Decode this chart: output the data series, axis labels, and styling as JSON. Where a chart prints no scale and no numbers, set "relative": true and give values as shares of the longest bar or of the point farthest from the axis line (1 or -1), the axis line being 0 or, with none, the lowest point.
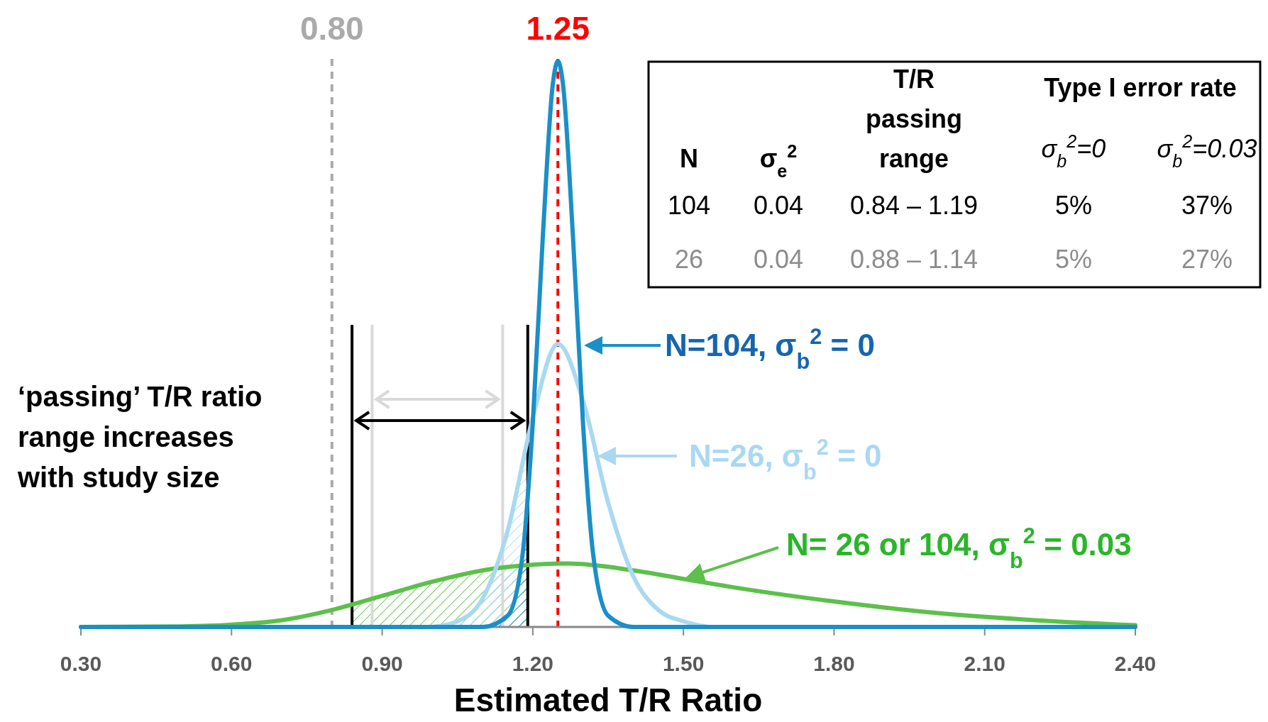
{
  "chart_data": {
    "type": "line",
    "relative": true,
    "xlabel": "Estimated T/R Ratio",
    "xlim": [
      0.3,
      2.4
    ],
    "xticks": [
      {
        "value": 0.3,
        "label": "0.30"
      },
      {
        "value": 0.6,
        "label": "0.60"
      },
      {
        "value": 0.9,
        "label": "0.90"
      },
      {
        "value": 1.2,
        "label": "1.20"
      },
      {
        "value": 1.5,
        "label": "1.50"
      },
      {
        "value": 1.8,
        "label": "1.80"
      },
      {
        "value": 2.1,
        "label": "2.10"
      },
      {
        "value": 2.4,
        "label": "2.40"
      }
    ],
    "grid": false,
    "legend": "right",
    "marker": "none",
    "line_style": "solid",
    "series": [
      {
        "name": "N= 26 or 104, σ$_{b}$$^{2}$ = 0.03",
        "color": "#5cc04a",
        "x": [
          0.3,
          0.5,
          0.6,
          0.7,
          0.8,
          0.9,
          1.0,
          1.1,
          1.2,
          1.27,
          1.4,
          1.5,
          1.6,
          1.8,
          2.0,
          2.2,
          2.4
        ],
        "values": [
          0,
          0.001,
          0.004,
          0.012,
          0.03,
          0.055,
          0.08,
          0.1,
          0.11,
          0.112,
          0.1,
          0.085,
          0.07,
          0.045,
          0.025,
          0.012,
          0.003
        ]
      },
      {
        "name": "N=26, σ$_{b}$$^{2}$ = 0",
        "color": "#a9d9f2",
        "x": [
          1.0,
          1.05,
          1.1,
          1.15,
          1.2,
          1.25,
          1.3,
          1.35,
          1.4,
          1.45,
          1.5,
          1.55
        ],
        "values": [
          0,
          0.01,
          0.05,
          0.17,
          0.37,
          0.5,
          0.4,
          0.22,
          0.09,
          0.03,
          0.01,
          0
        ]
      },
      {
        "name": "N=104, σ$_{b}$$^{2}$ = 0",
        "color": "#1a8fc8",
        "x": [
          0.3,
          1.1,
          1.15,
          1.18,
          1.2,
          1.22,
          1.24,
          1.25,
          1.26,
          1.28,
          1.3,
          1.32,
          1.35,
          1.4,
          2.4
        ],
        "values": [
          0,
          0,
          0.02,
          0.13,
          0.36,
          0.69,
          0.96,
          1,
          0.96,
          0.69,
          0.36,
          0.13,
          0.02,
          0,
          0
        ]
      }
    ],
    "ref_lines": [
      {
        "axis": "x",
        "value": 0.8,
        "label": "0.80",
        "color": "#aaaaaa",
        "line_style": "dashed"
      },
      {
        "axis": "x",
        "value": 1.25,
        "label": "1.25",
        "color": "#ff0000",
        "line_style": "dashed"
      },
      {
        "axis": "x",
        "value": 0.84,
        "color": "#000000",
        "line_style": "solid"
      },
      {
        "axis": "x",
        "value": 1.19,
        "color": "#000000",
        "line_style": "solid"
      },
      {
        "axis": "x",
        "value": 0.88,
        "color": "#d9d9d9",
        "line_style": "solid"
      },
      {
        "axis": "x",
        "value": 1.14,
        "color": "#d9d9d9",
        "line_style": "solid"
      }
    ],
    "annotations": [
      "‘passing’ T/R ratio range increases with study size",
      "N",
      "σ$_{e}$$^{2}$",
      "T/R passing range",
      "Type I error rate",
      "σ$_{b}$$^{2}$=0",
      "σ$_{b}$$^{2}$=0.03",
      "104",
      "0.04",
      "0.84 – 1.19",
      "5%",
      "37%",
      "26",
      "0.04",
      "0.88 – 1.14",
      "5%",
      "27%"
    ]
  }
}
